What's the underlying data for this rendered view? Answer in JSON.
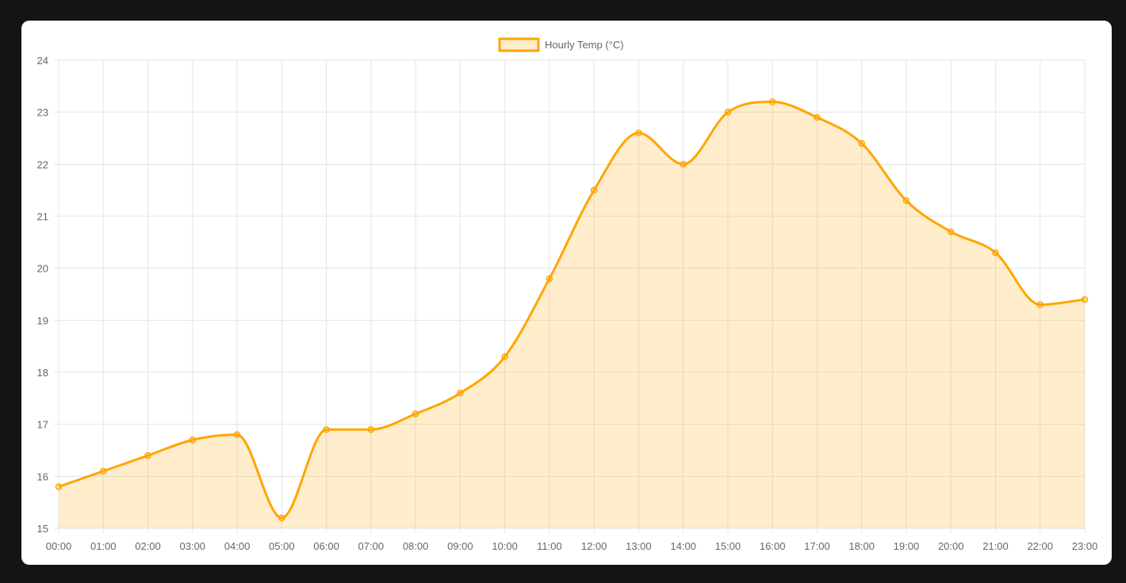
{
  "chart_data": {
    "type": "area",
    "categories": [
      "00:00",
      "01:00",
      "02:00",
      "03:00",
      "04:00",
      "05:00",
      "06:00",
      "07:00",
      "08:00",
      "09:00",
      "10:00",
      "11:00",
      "12:00",
      "13:00",
      "14:00",
      "15:00",
      "16:00",
      "17:00",
      "18:00",
      "19:00",
      "20:00",
      "21:00",
      "22:00",
      "23:00"
    ],
    "series": [
      {
        "name": "Hourly Temp (°C)",
        "values": [
          15.8,
          16.1,
          16.4,
          16.7,
          16.8,
          15.2,
          16.9,
          16.9,
          17.2,
          17.6,
          18.3,
          19.8,
          21.5,
          22.6,
          22.0,
          23.0,
          23.2,
          22.9,
          22.4,
          21.3,
          20.7,
          20.3,
          19.3,
          19.4
        ],
        "color": "#FFA500",
        "fill": "rgba(255,165,0,0.2)"
      }
    ],
    "y_ticks": [
      "15",
      "16",
      "17",
      "18",
      "19",
      "20",
      "21",
      "22",
      "23",
      "24"
    ],
    "ylim": [
      15,
      24
    ],
    "grid": true,
    "legend": "top-center",
    "title": "",
    "xlabel": "",
    "ylabel": ""
  }
}
